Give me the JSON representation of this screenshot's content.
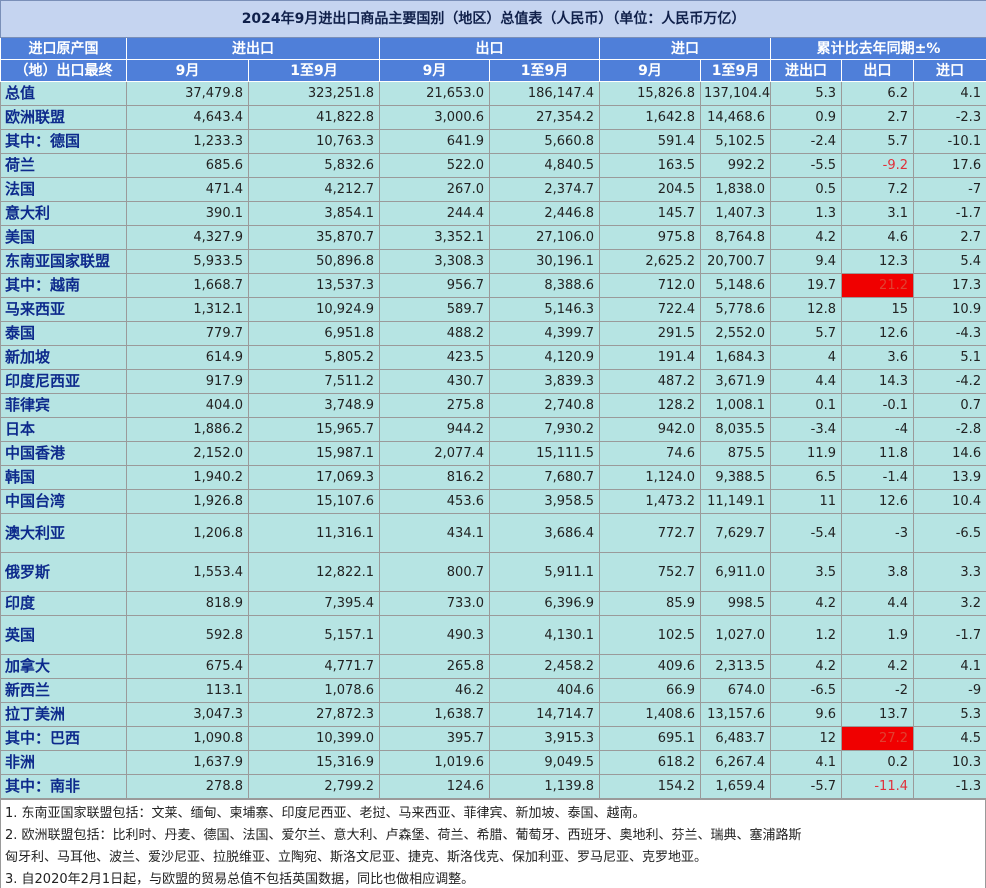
{
  "title": "2024年9月进出口商品主要国别（地区）总值表（人民币）（单位：人民币万亿）",
  "header": {
    "corner_top": "进口原产国",
    "corner_bottom": "（地）出口最终",
    "groups": [
      "进出口",
      "出口",
      "进口",
      "累计比去年同期±%"
    ],
    "subs": [
      "9月",
      "1至9月",
      "9月",
      "1至9月",
      "9月",
      "1至9月",
      "进出口",
      "出口",
      "进口"
    ]
  },
  "rows": [
    {
      "name": "总值",
      "v": [
        "37,479.8",
        "323,251.8",
        "21,653.0",
        "186,147.4",
        "15,826.8",
        "137,104.4",
        "5.3",
        "6.2",
        "4.1"
      ]
    },
    {
      "name": "欧洲联盟",
      "v": [
        "4,643.4",
        "41,822.8",
        "3,000.6",
        "27,354.2",
        "1,642.8",
        "14,468.6",
        "0.9",
        "2.7",
        "-2.3"
      ]
    },
    {
      "name": "其中：德国",
      "v": [
        "1,233.3",
        "10,763.3",
        "641.9",
        "5,660.8",
        "591.4",
        "5,102.5",
        "-2.4",
        "5.7",
        "-10.1"
      ]
    },
    {
      "name": "荷兰",
      "v": [
        "685.6",
        "5,832.6",
        "522.0",
        "4,840.5",
        "163.5",
        "992.2",
        "-5.5",
        "-9.2",
        "17.6"
      ],
      "red": [
        7
      ]
    },
    {
      "name": "法国",
      "v": [
        "471.4",
        "4,212.7",
        "267.0",
        "2,374.7",
        "204.5",
        "1,838.0",
        "0.5",
        "7.2",
        "-7"
      ]
    },
    {
      "name": "意大利",
      "v": [
        "390.1",
        "3,854.1",
        "244.4",
        "2,446.8",
        "145.7",
        "1,407.3",
        "1.3",
        "3.1",
        "-1.7"
      ]
    },
    {
      "name": "美国",
      "v": [
        "4,327.9",
        "35,870.7",
        "3,352.1",
        "27,106.0",
        "975.8",
        "8,764.8",
        "4.2",
        "4.6",
        "2.7"
      ]
    },
    {
      "name": "东南亚国家联盟",
      "v": [
        "5,933.5",
        "50,896.8",
        "3,308.3",
        "30,196.1",
        "2,625.2",
        "20,700.7",
        "9.4",
        "12.3",
        "5.4"
      ]
    },
    {
      "name": "其中：越南",
      "v": [
        "1,668.7",
        "13,537.3",
        "956.7",
        "8,388.6",
        "712.0",
        "5,148.6",
        "19.7",
        "21.2",
        "17.3"
      ],
      "hl": [
        7
      ]
    },
    {
      "name": "马来西亚",
      "v": [
        "1,312.1",
        "10,924.9",
        "589.7",
        "5,146.3",
        "722.4",
        "5,778.6",
        "12.8",
        "15",
        "10.9"
      ]
    },
    {
      "name": "泰国",
      "v": [
        "779.7",
        "6,951.8",
        "488.2",
        "4,399.7",
        "291.5",
        "2,552.0",
        "5.7",
        "12.6",
        "-4.3"
      ]
    },
    {
      "name": "新加坡",
      "v": [
        "614.9",
        "5,805.2",
        "423.5",
        "4,120.9",
        "191.4",
        "1,684.3",
        "4",
        "3.6",
        "5.1"
      ]
    },
    {
      "name": "印度尼西亚",
      "v": [
        "917.9",
        "7,511.2",
        "430.7",
        "3,839.3",
        "487.2",
        "3,671.9",
        "4.4",
        "14.3",
        "-4.2"
      ]
    },
    {
      "name": "菲律宾",
      "v": [
        "404.0",
        "3,748.9",
        "275.8",
        "2,740.8",
        "128.2",
        "1,008.1",
        "0.1",
        "-0.1",
        "0.7"
      ]
    },
    {
      "name": "日本",
      "v": [
        "1,886.2",
        "15,965.7",
        "944.2",
        "7,930.2",
        "942.0",
        "8,035.5",
        "-3.4",
        "-4",
        "-2.8"
      ]
    },
    {
      "name": "中国香港",
      "v": [
        "2,152.0",
        "15,987.1",
        "2,077.4",
        "15,111.5",
        "74.6",
        "875.5",
        "11.9",
        "11.8",
        "14.6"
      ]
    },
    {
      "name": "韩国",
      "v": [
        "1,940.2",
        "17,069.3",
        "816.2",
        "7,680.7",
        "1,124.0",
        "9,388.5",
        "6.5",
        "-1.4",
        "13.9"
      ]
    },
    {
      "name": "中国台湾",
      "v": [
        "1,926.8",
        "15,107.6",
        "453.6",
        "3,958.5",
        "1,473.2",
        "11,149.1",
        "11",
        "12.6",
        "10.4"
      ]
    },
    {
      "name": "澳大利亚",
      "v": [
        "1,206.8",
        "11,316.1",
        "434.1",
        "3,686.4",
        "772.7",
        "7,629.7",
        "-5.4",
        "-3",
        "-6.5"
      ],
      "tall": true
    },
    {
      "name": "俄罗斯",
      "v": [
        "1,553.4",
        "12,822.1",
        "800.7",
        "5,911.1",
        "752.7",
        "6,911.0",
        "3.5",
        "3.8",
        "3.3"
      ],
      "tall": true
    },
    {
      "name": "印度",
      "v": [
        "818.9",
        "7,395.4",
        "733.0",
        "6,396.9",
        "85.9",
        "998.5",
        "4.2",
        "4.4",
        "3.2"
      ]
    },
    {
      "name": "英国",
      "v": [
        "592.8",
        "5,157.1",
        "490.3",
        "4,130.1",
        "102.5",
        "1,027.0",
        "1.2",
        "1.9",
        "-1.7"
      ],
      "tall": true
    },
    {
      "name": "加拿大",
      "v": [
        "675.4",
        "4,771.7",
        "265.8",
        "2,458.2",
        "409.6",
        "2,313.5",
        "4.2",
        "4.2",
        "4.1"
      ]
    },
    {
      "name": "新西兰",
      "v": [
        "113.1",
        "1,078.6",
        "46.2",
        "404.6",
        "66.9",
        "674.0",
        "-6.5",
        "-2",
        "-9"
      ]
    },
    {
      "name": "拉丁美洲",
      "v": [
        "3,047.3",
        "27,872.3",
        "1,638.7",
        "14,714.7",
        "1,408.6",
        "13,157.6",
        "9.6",
        "13.7",
        "5.3"
      ]
    },
    {
      "name": "其中：巴西",
      "v": [
        "1,090.8",
        "10,399.0",
        "395.7",
        "3,915.3",
        "695.1",
        "6,483.7",
        "12",
        "27.2",
        "4.5"
      ],
      "hl": [
        7
      ]
    },
    {
      "name": "非洲",
      "v": [
        "1,637.9",
        "15,316.9",
        "1,019.6",
        "9,049.5",
        "618.2",
        "6,267.4",
        "4.1",
        "0.2",
        "10.3"
      ]
    },
    {
      "name": "其中：南非",
      "v": [
        "278.8",
        "2,799.2",
        "124.6",
        "1,139.8",
        "154.2",
        "1,659.4",
        "-5.7",
        "-11.4",
        "-1.3"
      ],
      "red": [
        7
      ]
    }
  ],
  "notes": [
    "1. 东南亚国家联盟包括：文莱、缅甸、柬埔寨、印度尼西亚、老挝、马来西亚、菲律宾、新加坡、泰国、越南。",
    "2. 欧洲联盟包括：比利时、丹麦、德国、法国、爱尔兰、意大利、卢森堡、荷兰、希腊、葡萄牙、西班牙、奥地利、芬兰、瑞典、塞浦路斯",
    "匈牙利、马耳他、波兰、爱沙尼亚、拉脱维亚、立陶宛、斯洛文尼亚、捷克、斯洛伐克、保加利亚、罗马尼亚、克罗地亚。",
    "3. 自2020年2月1日起，与欧盟的贸易总值不包括英国数据，同比也做相应调整。"
  ],
  "colors": {
    "header": "#4f7fd9",
    "cell": "#b6e4e3",
    "highlight": "#f00000",
    "negative_red": "#e0303a"
  }
}
